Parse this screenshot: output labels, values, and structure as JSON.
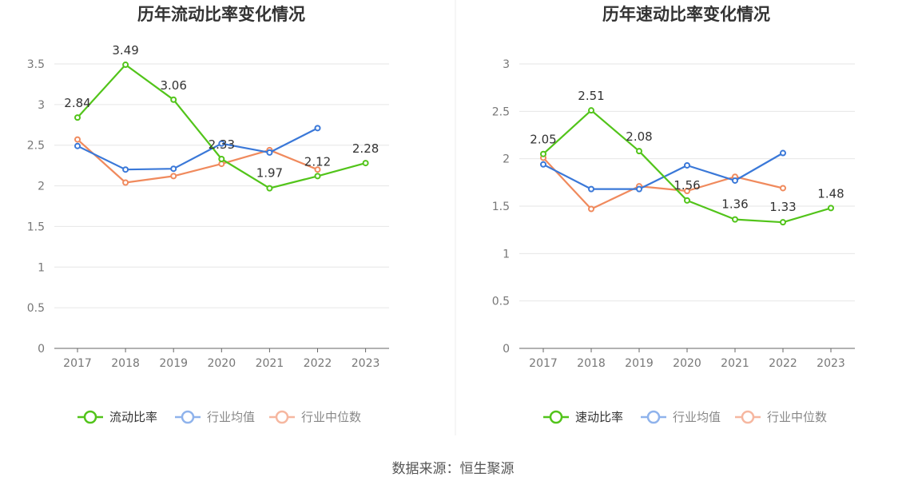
{
  "source_label": "数据来源：恒生聚源",
  "colors": {
    "green": "#52c41a",
    "blue": "#3a78d8",
    "orange": "#f08a5d",
    "axis": "#666666",
    "grid": "#e6e6e6",
    "legend_blue": "#8fb3ec",
    "legend_orange": "#f6b7a0",
    "legend_text_active": "#333333",
    "legend_text_inactive": "#888888"
  },
  "chart_data": [
    {
      "type": "line",
      "title": "历年流动比率变化情况",
      "categories": [
        "2017",
        "2018",
        "2019",
        "2020",
        "2021",
        "2022",
        "2023"
      ],
      "ylim": [
        0,
        3.5
      ],
      "yticks": [
        "0",
        "0.5",
        "1",
        "1.5",
        "2",
        "2.5",
        "3",
        "3.5"
      ],
      "series": [
        {
          "name": "流动比率",
          "color": "#52c41a",
          "values": [
            2.84,
            3.49,
            3.06,
            2.33,
            1.97,
            2.12,
            2.28
          ],
          "labels": [
            "2.84",
            "3.49",
            "3.06",
            "2.33",
            "1.97",
            "2.12",
            "2.28"
          ]
        },
        {
          "name": "行业均值",
          "color": "#3a78d8",
          "values": [
            2.49,
            2.2,
            2.21,
            2.52,
            2.41,
            2.71,
            null
          ]
        },
        {
          "name": "行业中位数",
          "color": "#f08a5d",
          "values": [
            2.57,
            2.04,
            2.12,
            2.27,
            2.44,
            2.2,
            null
          ]
        }
      ]
    },
    {
      "type": "line",
      "title": "历年速动比率变化情况",
      "categories": [
        "2017",
        "2018",
        "2019",
        "2020",
        "2021",
        "2022",
        "2023"
      ],
      "ylim": [
        0,
        3
      ],
      "yticks": [
        "0",
        "0.5",
        "1",
        "1.5",
        "2",
        "2.5",
        "3"
      ],
      "series": [
        {
          "name": "速动比率",
          "color": "#52c41a",
          "values": [
            2.05,
            2.51,
            2.08,
            1.56,
            1.36,
            1.33,
            1.48
          ],
          "labels": [
            "2.05",
            "2.51",
            "2.08",
            "1.56",
            "1.36",
            "1.33",
            "1.48"
          ]
        },
        {
          "name": "行业均值",
          "color": "#3a78d8",
          "values": [
            1.94,
            1.68,
            1.68,
            1.93,
            1.77,
            2.06,
            null
          ]
        },
        {
          "name": "行业中位数",
          "color": "#f08a5d",
          "values": [
            2.01,
            1.47,
            1.71,
            1.66,
            1.81,
            1.69,
            null
          ]
        }
      ]
    }
  ]
}
